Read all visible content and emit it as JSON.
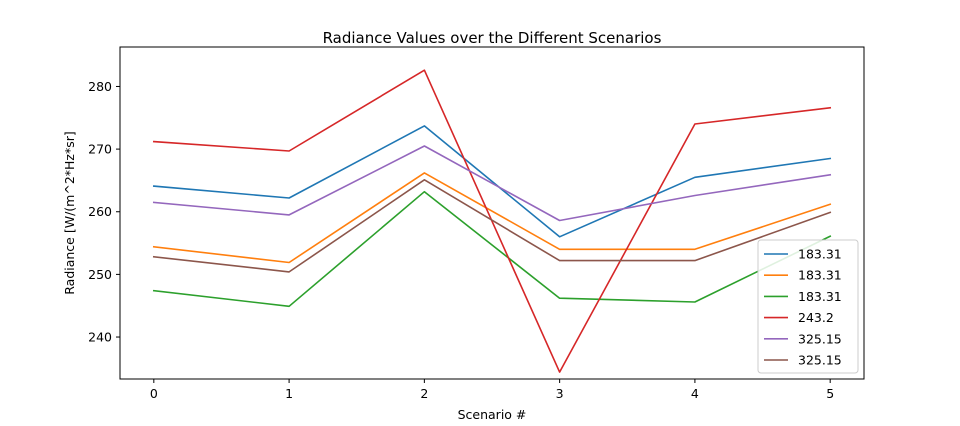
{
  "chart_data": {
    "type": "line",
    "title": "Radiance Values over the Different Scenarios",
    "xlabel": "Scenario #",
    "ylabel": "Radiance [W/(m^2*Hz*sr]",
    "x": [
      0,
      1,
      2,
      3,
      4,
      5
    ],
    "xlim": [
      -0.25,
      5.25
    ],
    "ylim": [
      233.3,
      286.3
    ],
    "xticks": [
      0,
      1,
      2,
      3,
      4,
      5
    ],
    "yticks": [
      240,
      250,
      260,
      270,
      280
    ],
    "grid": false,
    "legend_position": "lower-right",
    "series": [
      {
        "name": "183.31",
        "color": "#1f77b4",
        "values": [
          264.1,
          262.2,
          273.7,
          256.0,
          265.5,
          268.5
        ]
      },
      {
        "name": "183.31",
        "color": "#ff7f0e",
        "values": [
          254.4,
          251.9,
          266.2,
          254.0,
          254.0,
          261.2
        ]
      },
      {
        "name": "183.31",
        "color": "#2ca02c",
        "values": [
          247.4,
          244.9,
          263.2,
          246.2,
          245.6,
          256.1
        ]
      },
      {
        "name": "243.2",
        "color": "#d62728",
        "values": [
          271.2,
          269.7,
          282.6,
          234.4,
          274.0,
          276.6
        ]
      },
      {
        "name": "325.15",
        "color": "#9467bd",
        "values": [
          261.5,
          259.5,
          270.5,
          258.6,
          262.6,
          265.9
        ]
      },
      {
        "name": "325.15",
        "color": "#8c564b",
        "values": [
          252.8,
          250.4,
          265.1,
          252.2,
          252.2,
          259.9
        ]
      }
    ]
  }
}
